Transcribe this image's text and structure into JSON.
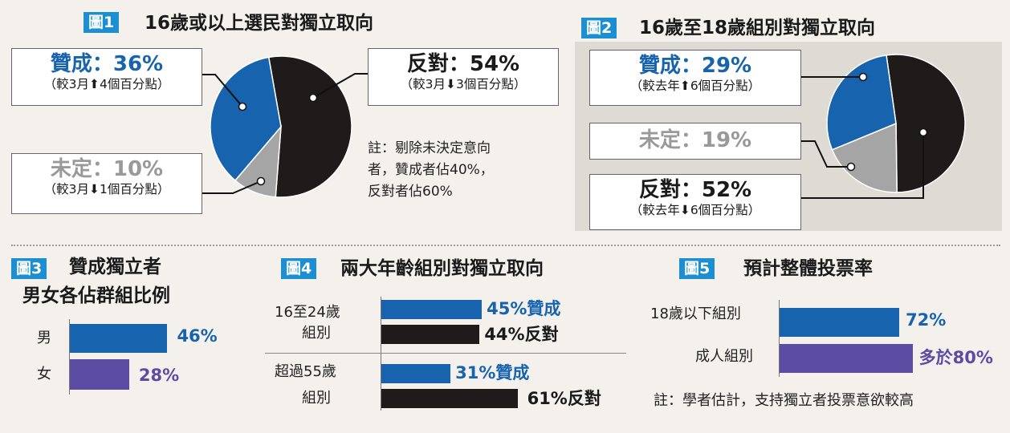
{
  "colors": {
    "blue": "#1763ad",
    "black": "#1f1b1b",
    "gray": "#a5a5a5",
    "purple": "#5b4ba3",
    "tag": "#1b8fd1"
  },
  "fig1": {
    "tag": "圖1",
    "title": "16歲或以上選民對獨立取向",
    "support": {
      "label": "贊成：36%",
      "sub_pre": "（較3月",
      "arrow": "⬆",
      "sub_post": "4個百分點）"
    },
    "oppose": {
      "label": "反對：54%",
      "sub_pre": "（較3月",
      "arrow": "⬇",
      "sub_post": "3個百分點）"
    },
    "undecided": {
      "label": "未定：10%",
      "sub_pre": "（較3月",
      "arrow": "⬇",
      "sub_post": "1個百分點）"
    },
    "note": [
      "註：剔除未決定意向",
      "者，贊成者佔40%，",
      "反對者佔60%"
    ]
  },
  "fig2": {
    "tag": "圖2",
    "title": "16歲至18歲組別對獨立取向",
    "support": {
      "label": "贊成：29%",
      "sub_pre": "（較去年",
      "arrow": "⬆",
      "sub_post": "6個百分點）"
    },
    "undecided": {
      "label": "未定：19%"
    },
    "oppose": {
      "label": "反對：52%",
      "sub_pre": "（較去年",
      "arrow": "⬇",
      "sub_post": "6個百分點）"
    }
  },
  "fig3": {
    "tag": "圖3",
    "title_line1": "贊成獨立者",
    "title_line2": "男女各佔群組比例",
    "rows": [
      {
        "cat": "男",
        "label": "46%"
      },
      {
        "cat": "女",
        "label": "28%"
      }
    ]
  },
  "fig4": {
    "tag": "圖4",
    "title": "兩大年齡組別對獨立取向",
    "groups": [
      {
        "cat_line1": "16至24歲",
        "cat_line2": "組別",
        "support_label": "45%贊成",
        "oppose_label": "44%反對"
      },
      {
        "cat_line1": "超過55歲",
        "cat_line2": "組別",
        "support_label": "31%贊成",
        "oppose_label": "61%反對"
      }
    ]
  },
  "fig5": {
    "tag": "圖5",
    "title": "預計整體投票率",
    "rows": [
      {
        "cat": "18歲以下組別",
        "label": "72%"
      },
      {
        "cat": "成人組別",
        "label": "多於80%"
      }
    ],
    "note": "註：學者估計，支持獨立者投票意欲較高"
  },
  "chart_data": [
    {
      "type": "pie",
      "title": "16歲或以上選民對獨立取向",
      "categories": [
        "贊成",
        "反對",
        "未定"
      ],
      "values": [
        36,
        54,
        10
      ]
    },
    {
      "type": "pie",
      "title": "16歲至18歲組別對獨立取向",
      "categories": [
        "贊成",
        "未定",
        "反對"
      ],
      "values": [
        29,
        19,
        52
      ]
    },
    {
      "type": "bar",
      "title": "贊成獨立者男女各佔群組比例",
      "categories": [
        "男",
        "女"
      ],
      "values": [
        46,
        28
      ]
    },
    {
      "type": "bar",
      "title": "兩大年齡組別對獨立取向",
      "categories": [
        "16至24歲組別",
        "超過55歲組別"
      ],
      "series": [
        {
          "name": "贊成",
          "values": [
            45,
            31
          ]
        },
        {
          "name": "反對",
          "values": [
            44,
            61
          ]
        }
      ]
    },
    {
      "type": "bar",
      "title": "預計整體投票率",
      "categories": [
        "18歲以下組別",
        "成人組別"
      ],
      "values": [
        72,
        80
      ]
    }
  ]
}
